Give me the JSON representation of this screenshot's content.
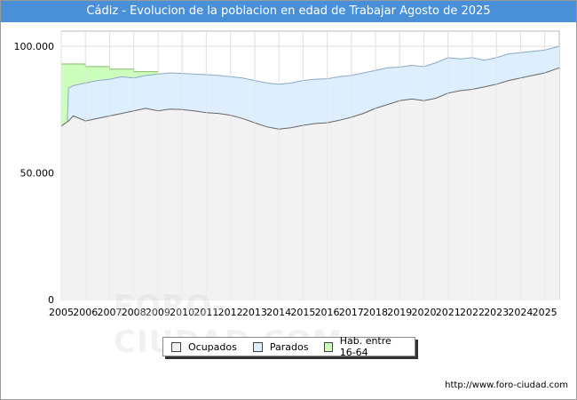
{
  "chart_data": {
    "type": "area",
    "title": "Cádiz - Evolucion de la poblacion en edad de Trabajar Agosto de 2025",
    "xlabel": "",
    "ylabel": "",
    "x_ticks": [
      "2005",
      "2006",
      "2007",
      "2008",
      "2009",
      "2010",
      "2011",
      "2012",
      "2013",
      "2014",
      "2015",
      "2016",
      "2017",
      "2018",
      "2019",
      "2020",
      "2021",
      "2022",
      "2023",
      "2024",
      "2025"
    ],
    "y_ticks": [
      "0",
      "50.000",
      "100.000"
    ],
    "ylim": [
      0,
      106000
    ],
    "xlim": [
      2005.0,
      2025.6
    ],
    "grid": true,
    "legend_position": "bottom",
    "series": [
      {
        "name": "Ocupados",
        "color": "#f2f2f2",
        "stroke": "#666666",
        "points": [
          [
            2005.0,
            68500
          ],
          [
            2005.3,
            70500
          ],
          [
            2005.5,
            72500
          ],
          [
            2006.0,
            70500
          ],
          [
            2006.5,
            71500
          ],
          [
            2007.0,
            72500
          ],
          [
            2007.5,
            73500
          ],
          [
            2008.0,
            74500
          ],
          [
            2008.5,
            75500
          ],
          [
            2009.0,
            74500
          ],
          [
            2009.5,
            75200
          ],
          [
            2010.0,
            75000
          ],
          [
            2010.5,
            74500
          ],
          [
            2011.0,
            73800
          ],
          [
            2011.5,
            73500
          ],
          [
            2012.0,
            72800
          ],
          [
            2012.5,
            71500
          ],
          [
            2013.0,
            69800
          ],
          [
            2013.5,
            68200
          ],
          [
            2014.0,
            67300
          ],
          [
            2014.5,
            67800
          ],
          [
            2015.0,
            68800
          ],
          [
            2015.5,
            69500
          ],
          [
            2016.0,
            69800
          ],
          [
            2016.5,
            70800
          ],
          [
            2017.0,
            72000
          ],
          [
            2017.5,
            73500
          ],
          [
            2018.0,
            75500
          ],
          [
            2018.5,
            77000
          ],
          [
            2019.0,
            78500
          ],
          [
            2019.5,
            79200
          ],
          [
            2020.0,
            78500
          ],
          [
            2020.5,
            79500
          ],
          [
            2021.0,
            81500
          ],
          [
            2021.5,
            82500
          ],
          [
            2022.0,
            83000
          ],
          [
            2022.5,
            84000
          ],
          [
            2023.0,
            85000
          ],
          [
            2023.5,
            86500
          ],
          [
            2024.0,
            87500
          ],
          [
            2024.5,
            88500
          ],
          [
            2025.0,
            89500
          ],
          [
            2025.6,
            91500
          ]
        ]
      },
      {
        "name": "Parados",
        "color": "#ddeeff",
        "stroke": "#8aaac8",
        "points": [
          [
            2005.0,
            68500
          ],
          [
            2005.25,
            69500
          ],
          [
            2005.3,
            83500
          ],
          [
            2005.5,
            84500
          ],
          [
            2006.0,
            85500
          ],
          [
            2006.5,
            86500
          ],
          [
            2007.0,
            87000
          ],
          [
            2007.5,
            88000
          ],
          [
            2008.0,
            87500
          ],
          [
            2008.5,
            88500
          ],
          [
            2009.0,
            89000
          ],
          [
            2009.5,
            89500
          ],
          [
            2010.0,
            89300
          ],
          [
            2010.5,
            89000
          ],
          [
            2011.0,
            88800
          ],
          [
            2011.5,
            88500
          ],
          [
            2012.0,
            88000
          ],
          [
            2012.5,
            87500
          ],
          [
            2013.0,
            86500
          ],
          [
            2013.5,
            85500
          ],
          [
            2014.0,
            85000
          ],
          [
            2014.5,
            85500
          ],
          [
            2015.0,
            86500
          ],
          [
            2015.5,
            87000
          ],
          [
            2016.0,
            87200
          ],
          [
            2016.5,
            88000
          ],
          [
            2017.0,
            88500
          ],
          [
            2017.5,
            89500
          ],
          [
            2018.0,
            90500
          ],
          [
            2018.5,
            91500
          ],
          [
            2019.0,
            91800
          ],
          [
            2019.5,
            92500
          ],
          [
            2020.0,
            92000
          ],
          [
            2020.5,
            93500
          ],
          [
            2021.0,
            95500
          ],
          [
            2021.5,
            95000
          ],
          [
            2022.0,
            95500
          ],
          [
            2022.5,
            94500
          ],
          [
            2023.0,
            95500
          ],
          [
            2023.5,
            97000
          ],
          [
            2024.0,
            97500
          ],
          [
            2024.5,
            98000
          ],
          [
            2025.0,
            98500
          ],
          [
            2025.6,
            100000
          ]
        ]
      },
      {
        "name": "Hab. entre 16-64",
        "color": "#ccffbb",
        "stroke": "#88bb66",
        "points": [
          [
            2005.0,
            93000
          ],
          [
            2006.0,
            93000
          ],
          [
            2006.0,
            92000
          ],
          [
            2007.0,
            92000
          ],
          [
            2007.0,
            91000
          ],
          [
            2008.0,
            91000
          ],
          [
            2008.0,
            90000
          ],
          [
            2009.0,
            90000
          ],
          [
            2009.0,
            89000
          ],
          [
            2010.0,
            89000
          ]
        ]
      }
    ]
  },
  "footer": {
    "url": "http://www.foro-ciudad.com"
  },
  "watermark": {
    "text": "FORO-CIUDAD.COM"
  }
}
